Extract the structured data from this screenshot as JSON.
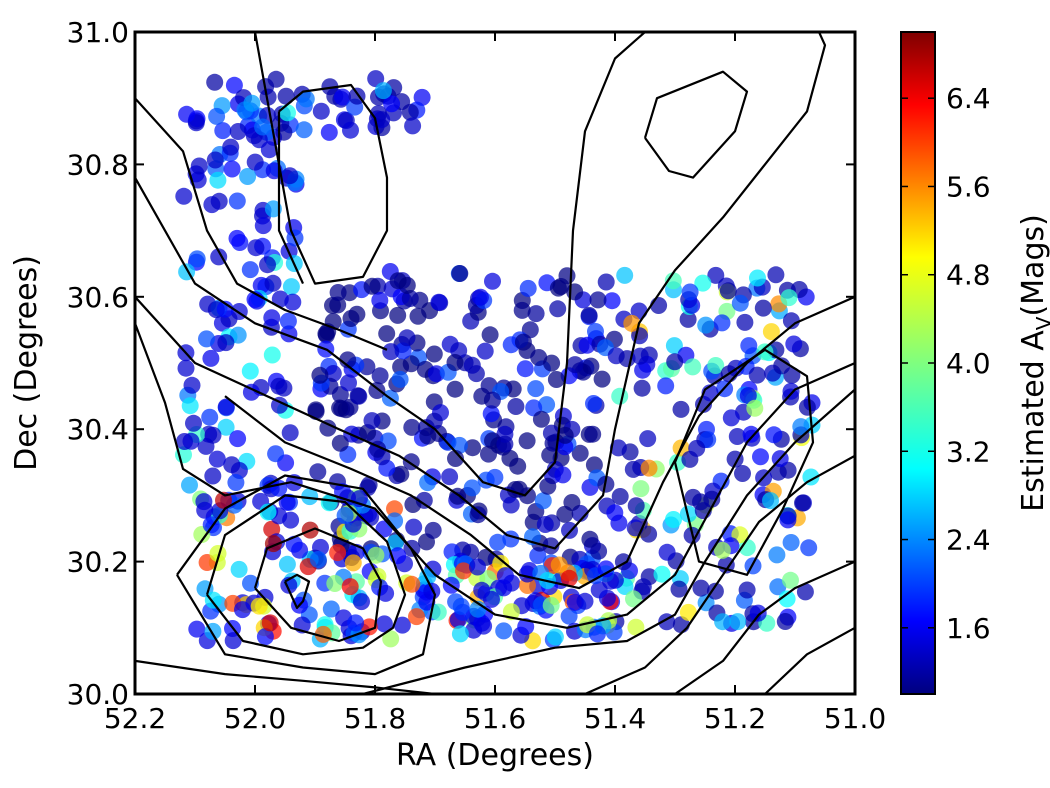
{
  "chart_data": {
    "type": "scatter",
    "title": "",
    "xlabel": "RA (Degrees)",
    "ylabel": "Dec (Degrees)",
    "xlim": [
      52.2,
      51.0
    ],
    "ylim": [
      30.0,
      31.0
    ],
    "x_ticks": [
      "52.2",
      "52.0",
      "51.8",
      "51.6",
      "51.4",
      "51.2",
      "51.0"
    ],
    "y_ticks": [
      "30.0",
      "30.2",
      "30.4",
      "30.6",
      "30.8",
      "31.0"
    ],
    "x_tick_values": [
      52.2,
      52.0,
      51.8,
      51.6,
      51.4,
      51.2,
      51.0
    ],
    "y_tick_values": [
      30.0,
      30.2,
      30.4,
      30.6,
      30.8,
      31.0
    ],
    "grid": false,
    "colorbar": {
      "label_main": "Estimated A",
      "label_sub": "V",
      "label_unit": "(Mags)",
      "range": [
        1.0,
        7.0
      ],
      "ticks": [
        "1.6",
        "2.4",
        "3.2",
        "4.0",
        "4.8",
        "5.6",
        "6.4"
      ],
      "tick_values": [
        1.6,
        2.4,
        3.2,
        4.0,
        4.8,
        5.6,
        6.4
      ],
      "colormap": "jet"
    },
    "contour_levels": [
      {
        "name": "contour-peak-west",
        "points": [
          [
            51.95,
            30.17
          ],
          [
            51.93,
            30.18
          ],
          [
            51.91,
            30.17
          ],
          [
            51.92,
            30.14
          ],
          [
            51.93,
            30.13
          ],
          [
            51.95,
            30.17
          ]
        ]
      },
      {
        "name": "contour-inner-west",
        "points": [
          [
            52.0,
            30.16
          ],
          [
            51.98,
            30.22
          ],
          [
            51.9,
            30.25
          ],
          [
            51.82,
            30.22
          ],
          [
            51.79,
            30.17
          ],
          [
            51.8,
            30.1
          ],
          [
            51.86,
            30.08
          ],
          [
            51.94,
            30.1
          ],
          [
            52.0,
            30.16
          ]
        ]
      },
      {
        "name": "contour-mid-west",
        "points": [
          [
            52.08,
            30.15
          ],
          [
            52.05,
            30.24
          ],
          [
            51.95,
            30.3
          ],
          [
            51.85,
            30.29
          ],
          [
            51.78,
            30.23
          ],
          [
            51.75,
            30.15
          ],
          [
            51.77,
            30.1
          ],
          [
            51.82,
            30.07
          ],
          [
            51.92,
            30.06
          ],
          [
            52.02,
            30.08
          ],
          [
            52.08,
            30.15
          ]
        ]
      },
      {
        "name": "contour-outer-west",
        "points": [
          [
            52.13,
            30.18
          ],
          [
            52.05,
            30.28
          ],
          [
            51.95,
            30.33
          ],
          [
            51.82,
            30.31
          ],
          [
            51.74,
            30.22
          ],
          [
            51.7,
            30.15
          ],
          [
            51.72,
            30.06
          ],
          [
            51.8,
            30.03
          ],
          [
            51.92,
            30.04
          ],
          [
            52.05,
            30.06
          ],
          [
            52.13,
            30.18
          ]
        ]
      },
      {
        "name": "contour-north-west",
        "points": [
          [
            51.96,
            30.88
          ],
          [
            51.92,
            30.91
          ],
          [
            51.84,
            30.92
          ],
          [
            51.8,
            30.87
          ],
          [
            51.78,
            30.78
          ],
          [
            51.78,
            30.7
          ],
          [
            51.82,
            30.63
          ],
          [
            51.9,
            30.62
          ],
          [
            51.94,
            30.7
          ],
          [
            51.96,
            30.8
          ],
          [
            51.96,
            30.88
          ]
        ]
      },
      {
        "name": "contour-north-east",
        "points": [
          [
            51.35,
            30.84
          ],
          [
            51.33,
            30.9
          ],
          [
            51.22,
            30.94
          ],
          [
            51.18,
            30.91
          ],
          [
            51.2,
            30.85
          ],
          [
            51.27,
            30.78
          ],
          [
            51.31,
            30.79
          ],
          [
            51.35,
            30.84
          ]
        ]
      },
      {
        "name": "contour-east-inner",
        "points": [
          [
            51.3,
            30.35
          ],
          [
            51.25,
            30.46
          ],
          [
            51.15,
            30.52
          ],
          [
            51.08,
            30.48
          ],
          [
            51.07,
            30.38
          ],
          [
            51.12,
            30.28
          ],
          [
            51.18,
            30.18
          ],
          [
            51.26,
            30.2
          ],
          [
            51.3,
            30.35
          ]
        ]
      },
      {
        "name": "contour-band-1",
        "points": [
          [
            52.2,
            30.78
          ],
          [
            52.1,
            30.62
          ],
          [
            52.0,
            30.56
          ],
          [
            51.88,
            30.52
          ],
          [
            51.78,
            30.45
          ],
          [
            51.7,
            30.4
          ],
          [
            51.62,
            30.32
          ],
          [
            51.55,
            30.3
          ],
          [
            51.5,
            30.35
          ],
          [
            51.48,
            30.5
          ],
          [
            51.47,
            30.7
          ],
          [
            51.45,
            30.85
          ],
          [
            51.4,
            30.96
          ],
          [
            51.35,
            31.0
          ]
        ]
      },
      {
        "name": "contour-band-2",
        "points": [
          [
            52.2,
            30.6
          ],
          [
            52.1,
            30.5
          ],
          [
            51.98,
            30.45
          ],
          [
            51.86,
            30.4
          ],
          [
            51.76,
            30.36
          ],
          [
            51.66,
            30.3
          ],
          [
            51.58,
            30.24
          ],
          [
            51.5,
            30.22
          ],
          [
            51.42,
            30.3
          ],
          [
            51.4,
            30.4
          ],
          [
            51.36,
            30.56
          ],
          [
            51.3,
            30.64
          ],
          [
            51.22,
            30.72
          ],
          [
            51.15,
            30.8
          ],
          [
            51.08,
            30.88
          ],
          [
            51.05,
            30.98
          ],
          [
            51.06,
            31.0
          ]
        ]
      },
      {
        "name": "contour-band-3",
        "points": [
          [
            52.05,
            30.45
          ],
          [
            51.95,
            30.38
          ],
          [
            51.84,
            30.34
          ],
          [
            51.74,
            30.3
          ],
          [
            51.64,
            30.24
          ],
          [
            51.56,
            30.18
          ],
          [
            51.46,
            30.16
          ],
          [
            51.38,
            30.2
          ],
          [
            51.32,
            30.32
          ],
          [
            51.26,
            30.42
          ],
          [
            51.18,
            30.5
          ],
          [
            51.1,
            30.56
          ],
          [
            51.0,
            30.6
          ]
        ]
      },
      {
        "name": "contour-band-4",
        "points": [
          [
            52.2,
            30.56
          ],
          [
            52.15,
            30.44
          ],
          [
            52.12,
            30.34
          ],
          [
            52.05,
            30.3
          ],
          [
            51.94,
            30.32
          ],
          [
            51.8,
            30.28
          ],
          [
            51.7,
            30.18
          ],
          [
            51.6,
            30.12
          ],
          [
            51.48,
            30.1
          ],
          [
            51.38,
            30.12
          ],
          [
            51.3,
            30.18
          ],
          [
            51.24,
            30.28
          ],
          [
            51.18,
            30.38
          ],
          [
            51.1,
            30.46
          ],
          [
            51.0,
            30.5
          ]
        ]
      },
      {
        "name": "contour-band-5",
        "points": [
          [
            52.2,
            30.05
          ],
          [
            52.05,
            30.03
          ],
          [
            51.92,
            30.02
          ],
          [
            51.8,
            30.01
          ],
          [
            51.7,
            30.0
          ]
        ]
      },
      {
        "name": "contour-band-6",
        "points": [
          [
            51.82,
            30.0
          ],
          [
            51.65,
            30.04
          ],
          [
            51.5,
            30.07
          ],
          [
            51.38,
            30.08
          ],
          [
            51.3,
            30.12
          ],
          [
            51.25,
            30.2
          ],
          [
            51.18,
            30.3
          ],
          [
            51.1,
            30.38
          ],
          [
            51.0,
            30.46
          ]
        ]
      },
      {
        "name": "contour-band-7",
        "points": [
          [
            51.45,
            30.0
          ],
          [
            51.35,
            30.04
          ],
          [
            51.28,
            30.1
          ],
          [
            51.22,
            30.18
          ],
          [
            51.16,
            30.26
          ],
          [
            51.08,
            30.32
          ],
          [
            51.0,
            30.36
          ]
        ]
      },
      {
        "name": "contour-band-8",
        "points": [
          [
            51.3,
            30.0
          ],
          [
            51.22,
            30.05
          ],
          [
            51.16,
            30.12
          ],
          [
            51.1,
            30.16
          ],
          [
            51.0,
            30.2
          ]
        ]
      },
      {
        "name": "contour-band-9",
        "points": [
          [
            51.15,
            30.0
          ],
          [
            51.08,
            30.06
          ],
          [
            51.0,
            30.1
          ]
        ]
      },
      {
        "name": "contour-northwest-arc",
        "points": [
          [
            52.2,
            30.9
          ],
          [
            52.12,
            30.82
          ],
          [
            52.08,
            30.7
          ],
          [
            52.03,
            30.62
          ],
          [
            51.95,
            30.58
          ],
          [
            51.86,
            30.55
          ],
          [
            51.78,
            30.52
          ]
        ]
      },
      {
        "name": "contour-north-arc",
        "points": [
          [
            52.0,
            31.0
          ],
          [
            51.98,
            30.9
          ],
          [
            51.96,
            30.8
          ],
          [
            51.96,
            30.7
          ],
          [
            51.92,
            30.62
          ]
        ]
      }
    ],
    "point_regions": [
      {
        "name": "north-west-strip",
        "x": [
          52.1,
          51.72
        ],
        "y": [
          30.84,
          30.93
        ],
        "count": 60,
        "av": [
          1.2,
          2.8
        ]
      },
      {
        "name": "west-column",
        "x": [
          52.12,
          51.93
        ],
        "y": [
          30.3,
          30.9
        ],
        "count": 120,
        "av": [
          1.4,
          3.6
        ]
      },
      {
        "name": "central-block",
        "x": [
          51.9,
          51.4
        ],
        "y": [
          30.2,
          30.64
        ],
        "count": 280,
        "av": [
          1.0,
          2.4
        ]
      },
      {
        "name": "east-block",
        "x": [
          51.4,
          51.07
        ],
        "y": [
          30.1,
          30.64
        ],
        "count": 200,
        "av": [
          1.2,
          5.5
        ]
      },
      {
        "name": "south-west-knot",
        "x": [
          52.1,
          51.75
        ],
        "y": [
          30.08,
          30.3
        ],
        "count": 120,
        "av": [
          1.5,
          6.8
        ]
      },
      {
        "name": "south-central",
        "x": [
          51.75,
          51.4
        ],
        "y": [
          30.08,
          30.2
        ],
        "count": 110,
        "av": [
          1.5,
          6.5
        ]
      }
    ]
  }
}
